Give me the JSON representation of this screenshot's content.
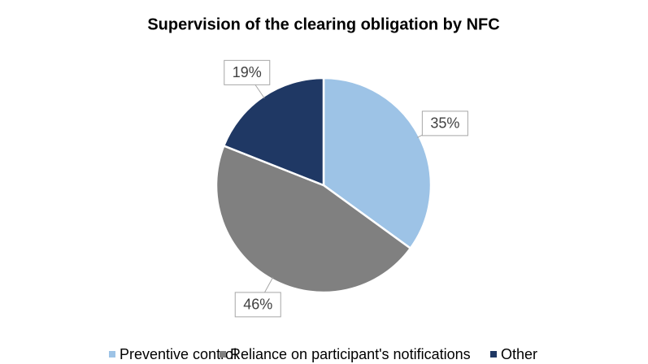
{
  "chart_data": {
    "type": "pie",
    "title": "Supervision of the clearing obligation by NFC",
    "categories": [
      "Preventive control",
      "Reliance on participant's notifications",
      "Other"
    ],
    "values": [
      35,
      46,
      19
    ],
    "value_labels": [
      "35%",
      "46%",
      "19%"
    ],
    "colors": [
      "#9dc3e6",
      "#808080",
      "#1f3864"
    ],
    "legend": "bottom"
  }
}
